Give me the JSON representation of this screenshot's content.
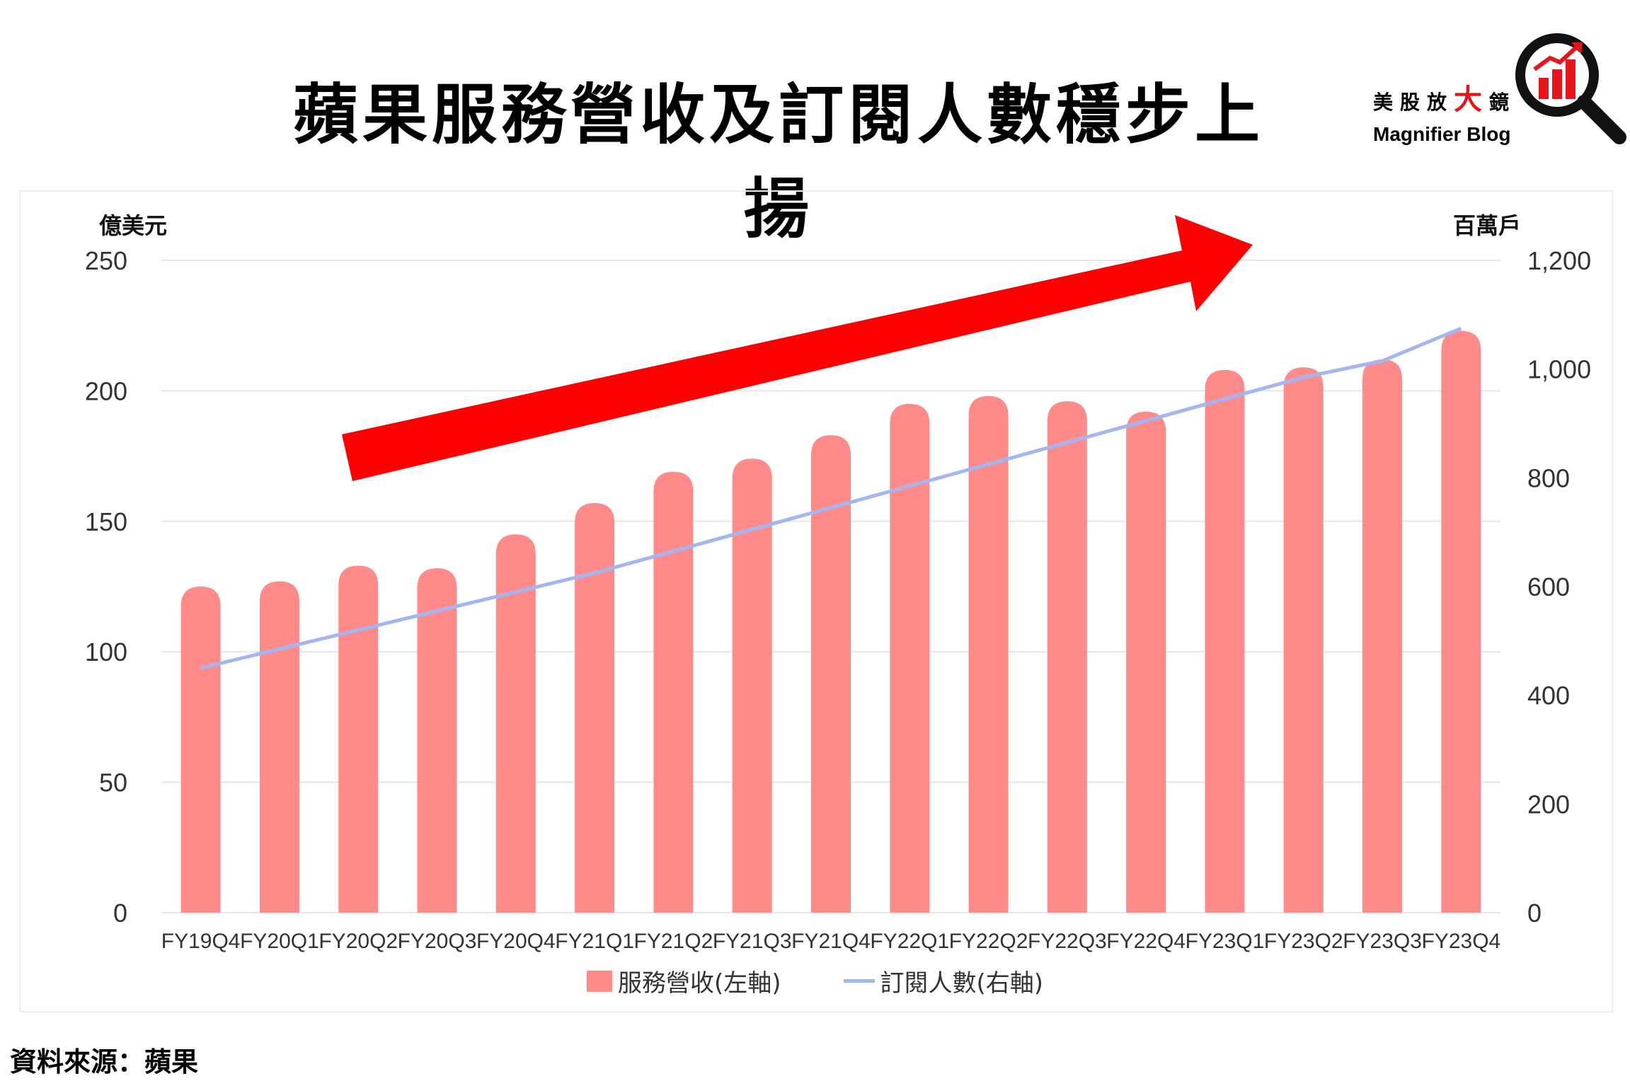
{
  "title": "蘋果服務營收及訂閱人數穩步上揚",
  "brand": {
    "cn_prefix": "美股放",
    "cn_big": "大",
    "cn_suffix": "鏡",
    "en": "Magnifier Blog"
  },
  "source": "資料來源：蘋果",
  "colors": {
    "bar": "#ff8a8a",
    "line": "#a4b6f0",
    "arrow": "#ff0000",
    "grid": "#e6e6e6"
  },
  "chart_data": {
    "type": "bar",
    "title": "蘋果服務營收及訂閱人數穩步上揚",
    "categories": [
      "FY19Q4",
      "FY20Q1",
      "FY20Q2",
      "FY20Q3",
      "FY20Q4",
      "FY21Q1",
      "FY21Q2",
      "FY21Q3",
      "FY21Q4",
      "FY22Q1",
      "FY22Q2",
      "FY22Q3",
      "FY22Q4",
      "FY23Q1",
      "FY23Q2",
      "FY23Q3",
      "FY23Q4"
    ],
    "series": [
      {
        "name": "服務營收(左軸)",
        "type": "bar",
        "axis": "left",
        "values": [
          125,
          127,
          133,
          132,
          145,
          157,
          169,
          174,
          183,
          195,
          198,
          196,
          192,
          208,
          209,
          212,
          223
        ]
      },
      {
        "name": "訂閱人數(右軸)",
        "type": "line",
        "axis": "right",
        "values": [
          450,
          485,
          520,
          555,
          590,
          625,
          665,
          705,
          745,
          785,
          825,
          865,
          905,
          945,
          985,
          1015,
          1075
        ]
      }
    ],
    "y_left": {
      "label": "億美元",
      "ticks": [
        "0",
        "50",
        "100",
        "150",
        "200",
        "250"
      ],
      "ylim": [
        0,
        250
      ]
    },
    "y_right": {
      "label": "百萬戶",
      "ticks": [
        "0",
        "200",
        "400",
        "600",
        "800",
        "1,000",
        "1,200"
      ],
      "ylim": [
        0,
        1200
      ]
    },
    "grid": true,
    "legend_position": "bottom",
    "annotation": "upward trend arrow"
  }
}
